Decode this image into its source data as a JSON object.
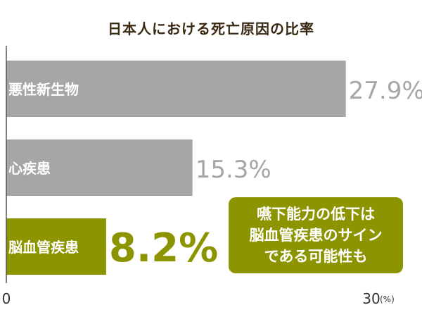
{
  "chart_data": {
    "type": "bar",
    "orientation": "horizontal",
    "title": "日本人における死亡原因の比率",
    "categories": [
      "悪性新生物",
      "心疾患",
      "脳血管疾患"
    ],
    "values": [
      27.9,
      15.3,
      8.2
    ],
    "value_labels": [
      "27.9%",
      "15.3%",
      "8.2%"
    ],
    "xlim": [
      0,
      30
    ],
    "x_ticks": [
      "0",
      "30"
    ],
    "x_unit": "(%)",
    "grid": false,
    "legend": "none",
    "highlight_category": "脳血管疾患",
    "colors": {
      "bar": "#a6a6a6",
      "highlight": "#8c9500",
      "value_label": "#a6a6a6",
      "highlight_value_label": "#8c9500"
    },
    "annotation": {
      "lines": [
        "嚥下能力の低下は",
        "脳血管疾患のサイン",
        "である可能性も"
      ]
    }
  }
}
